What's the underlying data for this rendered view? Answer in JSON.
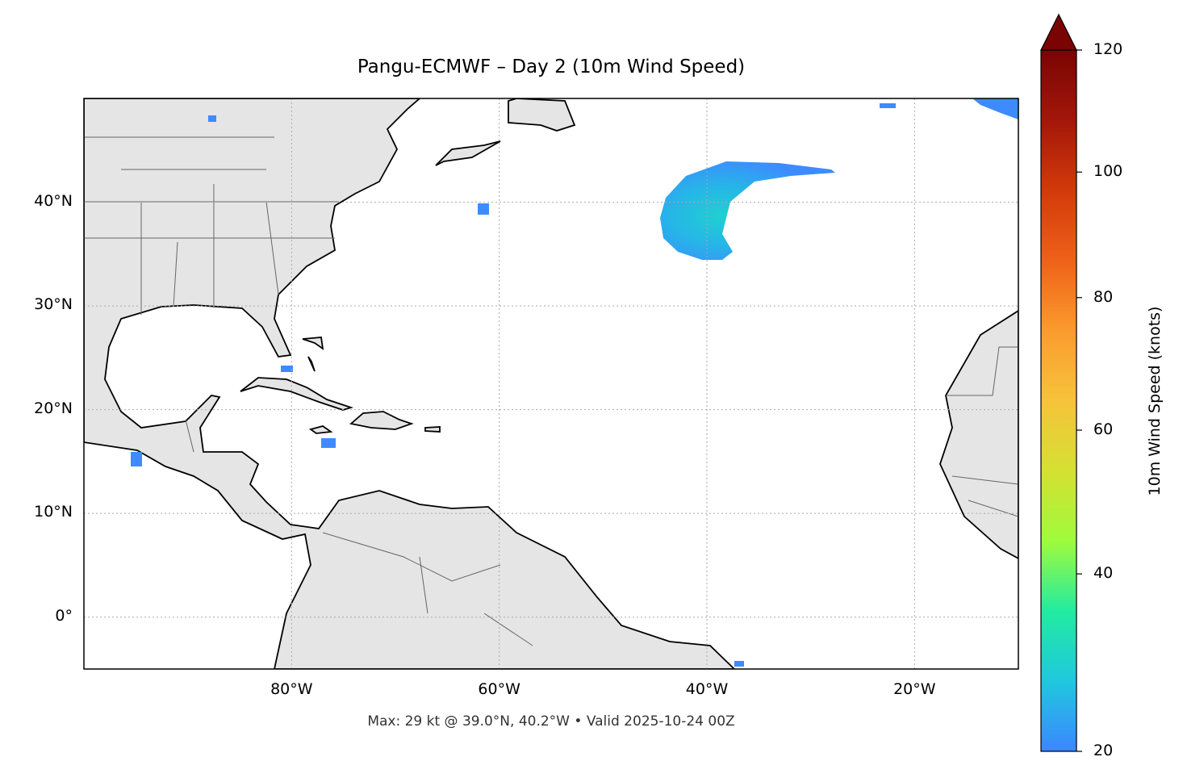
{
  "title": "Pangu-ECMWF – Day 2 (10m Wind Speed)",
  "footer": "Max: 29 kt @ 39.0°N, 40.2°W • Valid 2025-10-24 00Z",
  "chart_data": {
    "type": "heatmap",
    "title": "Pangu-ECMWF – Day 2 (10m Wind Speed)",
    "map_extent": {
      "lon": [
        -100,
        -10
      ],
      "lat": [
        -5,
        50
      ]
    },
    "lat_ticks": [
      {
        "value": 40,
        "label": "40°N"
      },
      {
        "value": 30,
        "label": "30°N"
      },
      {
        "value": 20,
        "label": "20°N"
      },
      {
        "value": 10,
        "label": "10°N"
      },
      {
        "value": 0,
        "label": "0°"
      }
    ],
    "lon_ticks": [
      {
        "value": -80,
        "label": "80°W"
      },
      {
        "value": -60,
        "label": "60°W"
      },
      {
        "value": -40,
        "label": "40°W"
      },
      {
        "value": -20,
        "label": "20°W"
      }
    ],
    "grid": true,
    "colorbar": {
      "label": "10m Wind Speed (knots)",
      "range": [
        20,
        120
      ],
      "extend": "max",
      "ticks": [
        20,
        40,
        60,
        80,
        100,
        120
      ],
      "colors": [
        "#3d86ff",
        "#1fc8de",
        "#22eba0",
        "#9ffb3c",
        "#d5e032",
        "#f6c33a",
        "#fb9b2e",
        "#ee6119",
        "#d23a0a",
        "#a3170a",
        "#7a0403"
      ]
    },
    "max": {
      "value_kt": 29,
      "lat": 39.0,
      "lon": -40.2
    },
    "valid": "2025-10-24 00Z",
    "features": [
      {
        "name": "wind maximum region",
        "center_lat": 39,
        "center_lon": -40,
        "max_kt": 29
      }
    ]
  }
}
